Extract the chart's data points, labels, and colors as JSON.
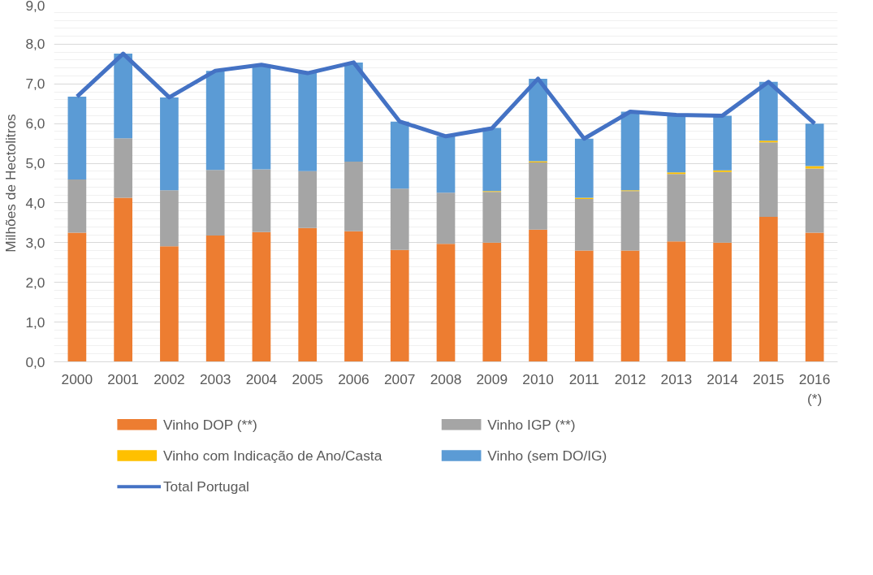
{
  "chart_data": {
    "type": "bar",
    "stacked": true,
    "ylabel": "Milhões de Hectolitros",
    "categories": [
      "2000",
      "2001",
      "2002",
      "2003",
      "2004",
      "2005",
      "2006",
      "2007",
      "2008",
      "2009",
      "2010",
      "2011",
      "2012",
      "2013",
      "2014",
      "2015",
      "2016\n(*)"
    ],
    "ylim": [
      0,
      9
    ],
    "yticks": [
      {
        "value": 0,
        "label": "0,0"
      },
      {
        "value": 1,
        "label": "1,0"
      },
      {
        "value": 2,
        "label": "2,0"
      },
      {
        "value": 3,
        "label": "3,0"
      },
      {
        "value": 4,
        "label": "4,0"
      },
      {
        "value": 5,
        "label": "5,0"
      },
      {
        "value": 6,
        "label": "6,0"
      },
      {
        "value": 7,
        "label": "7,0"
      },
      {
        "value": 8,
        "label": "8,0"
      },
      {
        "value": 9,
        "label": "9,0"
      }
    ],
    "grid": "y",
    "legend": "bottom",
    "series": [
      {
        "name": "Vinho DOP (**)",
        "color": "#ed7d31",
        "values": [
          3.25,
          4.13,
          2.91,
          3.18,
          3.27,
          3.37,
          3.29,
          2.82,
          2.97,
          3.0,
          3.33,
          2.8,
          2.8,
          3.03,
          3.0,
          3.65,
          3.25
        ]
      },
      {
        "name": "Vinho IGP (**)",
        "color": "#a5a5a5",
        "values": [
          1.34,
          1.5,
          1.41,
          1.65,
          1.58,
          1.43,
          1.75,
          1.54,
          1.29,
          1.28,
          1.69,
          1.3,
          1.5,
          1.7,
          1.78,
          1.88,
          1.62
        ]
      },
      {
        "name": "Vinho com Indicação de Ano/Casta",
        "color": "#ffc000",
        "values": [
          0,
          0,
          0,
          0,
          0,
          0,
          0,
          0,
          0,
          0.02,
          0.03,
          0.03,
          0.02,
          0.04,
          0.04,
          0.04,
          0.06
        ]
      },
      {
        "name": "Vinho (sem DO/IG)",
        "color": "#5b9bd5",
        "values": [
          2.09,
          2.13,
          2.34,
          2.5,
          2.63,
          2.47,
          2.5,
          1.69,
          1.42,
          1.59,
          2.08,
          1.49,
          1.98,
          1.45,
          1.38,
          1.48,
          1.07
        ]
      },
      {
        "name": "Total Portugal",
        "type": "line",
        "color": "#4472c4",
        "values": [
          6.68,
          7.76,
          6.66,
          7.33,
          7.48,
          7.27,
          7.54,
          6.05,
          5.68,
          5.88,
          7.13,
          5.62,
          6.3,
          6.22,
          6.2,
          7.05,
          6.0
        ]
      }
    ]
  }
}
